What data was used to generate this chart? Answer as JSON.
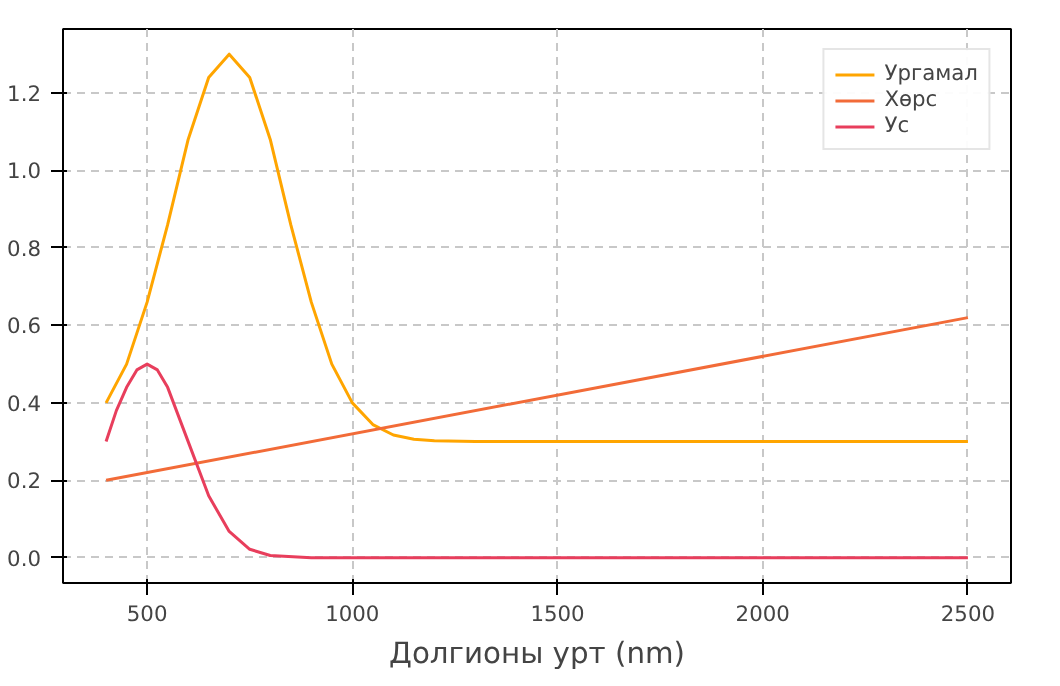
{
  "chart_data": {
    "type": "line",
    "xlabel": "Долгионы урт (nm)",
    "xlim": [
      295,
      2605
    ],
    "ylim": [
      -0.065,
      1.365
    ],
    "xticks": [
      500,
      1000,
      1500,
      2000,
      2500
    ],
    "yticks": [
      {
        "value": 0,
        "label": "0.0"
      },
      {
        "value": 0.2,
        "label": "0.2"
      },
      {
        "value": 0.4,
        "label": "0.4"
      },
      {
        "value": 0.6,
        "label": "0.6"
      },
      {
        "value": 0.8,
        "label": "0.8"
      },
      {
        "value": 1.0,
        "label": "1.0"
      },
      {
        "value": 1.2,
        "label": "1.2"
      }
    ],
    "grid": true,
    "legend": "top right",
    "line_style": "solid",
    "marker": "none",
    "series": [
      {
        "name": "Ургамал",
        "color": "#ffa500",
        "x": [
          400,
          450,
          500,
          550,
          600,
          650,
          700,
          750,
          800,
          850,
          900,
          950,
          1000,
          1050,
          1100,
          1150,
          1200,
          1300,
          2500
        ],
        "values": [
          0.4,
          0.5,
          0.66,
          0.86,
          1.08,
          1.24,
          1.3,
          1.24,
          1.08,
          0.86,
          0.66,
          0.5,
          0.4,
          0.344,
          0.317,
          0.306,
          0.302,
          0.3,
          0.3
        ]
      },
      {
        "name": "Хөрс",
        "color": "#f26b38",
        "x": [
          400,
          2500
        ],
        "values": [
          0.2,
          0.62
        ]
      },
      {
        "name": "Ус",
        "color": "#e83e5c",
        "x": [
          400,
          425,
          450,
          475,
          500,
          525,
          550,
          600,
          650,
          700,
          750,
          800,
          900,
          1000,
          2500
        ],
        "values": [
          0.3,
          0.38,
          0.44,
          0.485,
          0.5,
          0.485,
          0.44,
          0.3,
          0.16,
          0.068,
          0.022,
          0.006,
          0.0,
          0.0,
          0.0
        ]
      }
    ]
  }
}
